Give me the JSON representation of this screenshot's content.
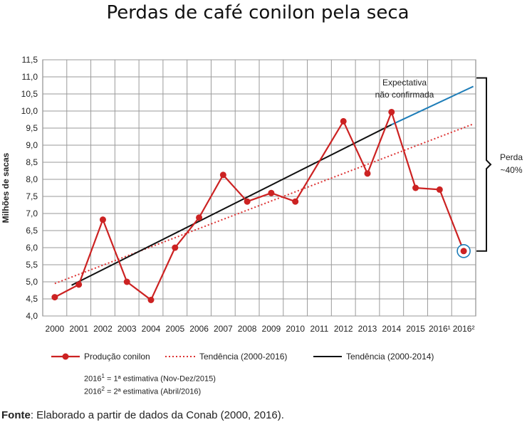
{
  "chart_data": {
    "type": "line",
    "title": "Perdas de café conilon pela seca",
    "ylabel": "Milhões de sacas",
    "xlabel": "",
    "ylim": [
      4.0,
      11.5
    ],
    "yticks": [
      "4,0",
      "4,5",
      "5,0",
      "5,5",
      "6,0",
      "6,5",
      "7,0",
      "7,5",
      "8,0",
      "8,5",
      "9,0",
      "9,5",
      "10,0",
      "10,5",
      "11,0",
      "11,5"
    ],
    "categories": [
      "2000",
      "2001",
      "2002",
      "2003",
      "2004",
      "2005",
      "2006",
      "2007",
      "2008",
      "2009",
      "2010",
      "2011",
      "2012",
      "2013",
      "2014",
      "2015",
      "2016¹",
      "2016²"
    ],
    "grid": true,
    "series": [
      {
        "name": "Produção conilon",
        "style": "solid-markers",
        "color": "#cc2222",
        "values": [
          4.55,
          4.92,
          6.82,
          5.0,
          4.47,
          6.0,
          6.88,
          8.13,
          7.35,
          7.6,
          7.35,
          null,
          9.7,
          8.17,
          9.97,
          7.75,
          7.7,
          5.9
        ]
      },
      {
        "name": "Tendência (2000-2016)",
        "style": "dotted",
        "color": "#dd3333",
        "x_start": 0,
        "y_start": 4.95,
        "x_end": 17.4,
        "y_end": 9.62
      },
      {
        "name": "Tendência (2000-2014)",
        "style": "solid",
        "color": "#111111",
        "x_start": 0.7,
        "y_start": 4.9,
        "x_end": 14.0,
        "y_end": 9.6
      }
    ],
    "expectation_line": {
      "label": "Expectativa não confirmada",
      "label_line1": "Expectativa",
      "label_line2": "não confirmada",
      "color": "#1e7db8",
      "x_start": 14.0,
      "y_start": 9.6,
      "x_end": 17.4,
      "y_end": 10.72
    },
    "loss_annotation": {
      "line1": "Perda",
      "line2": "~40%",
      "y_top": 10.97,
      "y_bottom": 5.9
    },
    "legend_placement": "bottom"
  },
  "notes": {
    "line1_prefix": "2016",
    "line1_sup": "1",
    "line1_text": " = 1ª estimativa (Nov-Dez/2015)",
    "line2_prefix": "2016",
    "line2_sup": "2",
    "line2_text": " = 2ª estimativa (Abril/2016)"
  },
  "source": {
    "label": "Fonte",
    "text": ": Elaborado a partir de dados da Conab (2000, 2016)."
  }
}
